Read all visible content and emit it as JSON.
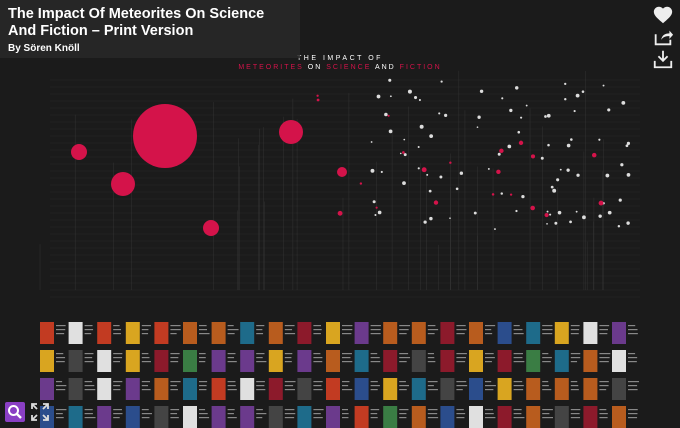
{
  "header": {
    "title": "The Impact Of Meteorites On Science And Fiction – Print Version",
    "author": "By Sören Knöll"
  },
  "poster": {
    "line1": "THE IMPACT OF",
    "line2": [
      "METEORITES",
      "ON",
      "SCIENCE",
      "AND",
      "FICTION"
    ]
  }
}
